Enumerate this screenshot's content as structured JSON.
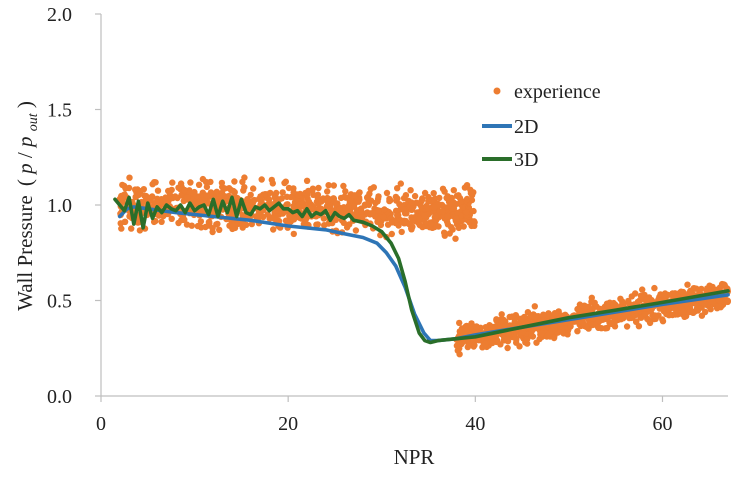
{
  "chart_data": {
    "type": "scatter",
    "xlabel": "NPR",
    "ylabel": "Wall Pressure (p/p_out)",
    "ylabel_parts": {
      "prefix": "Wall Pressure",
      "open": "(",
      "numerator": "p",
      "slash": "/",
      "denominator": "p",
      "subscript": "out",
      "close": ")"
    },
    "xlim": [
      0,
      67
    ],
    "ylim": [
      0.0,
      2.0
    ],
    "x_ticks": [
      "0",
      "20",
      "40",
      "60"
    ],
    "y_ticks": [
      "0.0",
      "0.5",
      "1.0",
      "1.5",
      "2.0"
    ],
    "grid": false,
    "legend_position": "right",
    "series": [
      {
        "name": "experience",
        "type": "scatter",
        "color": "#ED7D31",
        "segments": [
          {
            "x_range": [
              2,
              40
            ],
            "y_trend_start": 1.0,
            "y_trend_end": 0.97,
            "spread": 0.23,
            "n_points": 900
          },
          {
            "x_range": [
              38,
              67
            ],
            "y_trend_start": 0.3,
            "y_trend_end": 0.53,
            "spread": 0.14,
            "n_points": 950
          }
        ]
      },
      {
        "name": "2D",
        "type": "line",
        "color": "#2E75B6",
        "x": [
          2,
          2.8,
          3.5,
          5,
          8,
          12,
          16,
          20,
          24,
          26,
          28,
          29.5,
          30.5,
          31.5,
          32.5,
          33.5,
          34.5,
          35.2,
          36,
          38,
          40,
          45,
          50,
          55,
          60,
          67
        ],
        "y": [
          0.94,
          0.98,
          0.99,
          0.98,
          0.96,
          0.94,
          0.92,
          0.89,
          0.87,
          0.85,
          0.83,
          0.8,
          0.75,
          0.68,
          0.57,
          0.43,
          0.33,
          0.29,
          0.29,
          0.3,
          0.32,
          0.36,
          0.4,
          0.44,
          0.48,
          0.53
        ]
      },
      {
        "name": "3D",
        "type": "line",
        "color": "#2A6E2A",
        "x": [
          1.5,
          2,
          2.5,
          3,
          3.5,
          4,
          4.5,
          5,
          5.5,
          6,
          6.5,
          7,
          7.5,
          8,
          8.5,
          9,
          9.5,
          10,
          10.5,
          11,
          11.5,
          12,
          12.5,
          13,
          13.5,
          14,
          14.5,
          15,
          15.5,
          16,
          16.5,
          17,
          17.5,
          18,
          18.5,
          19,
          19.5,
          20,
          20.5,
          21,
          21.5,
          22,
          22.5,
          23,
          23.5,
          24,
          24.5,
          25,
          25.5,
          26,
          26.5,
          27,
          28,
          29,
          30,
          31,
          31.8,
          32.5,
          33.2,
          34,
          34.6,
          35.2,
          36,
          38,
          40,
          45,
          50,
          55,
          60,
          67
        ],
        "y": [
          1.03,
          1.0,
          0.97,
          1.04,
          0.9,
          1.02,
          0.88,
          1.01,
          0.93,
          0.99,
          0.96,
          1.0,
          0.98,
          0.97,
          1.0,
          0.96,
          1.01,
          0.97,
          0.99,
          1.0,
          0.95,
          1.03,
          0.94,
          1.02,
          0.96,
          1.04,
          0.94,
          1.03,
          0.96,
          0.95,
          0.99,
          0.98,
          1.0,
          0.97,
          0.99,
          1.01,
          0.98,
          0.98,
          0.96,
          0.97,
          0.94,
          0.98,
          0.94,
          0.96,
          0.95,
          0.97,
          0.92,
          0.96,
          0.94,
          0.93,
          0.95,
          0.92,
          0.91,
          0.89,
          0.86,
          0.8,
          0.72,
          0.6,
          0.45,
          0.33,
          0.29,
          0.28,
          0.29,
          0.3,
          0.31,
          0.36,
          0.41,
          0.45,
          0.49,
          0.55
        ]
      }
    ]
  }
}
